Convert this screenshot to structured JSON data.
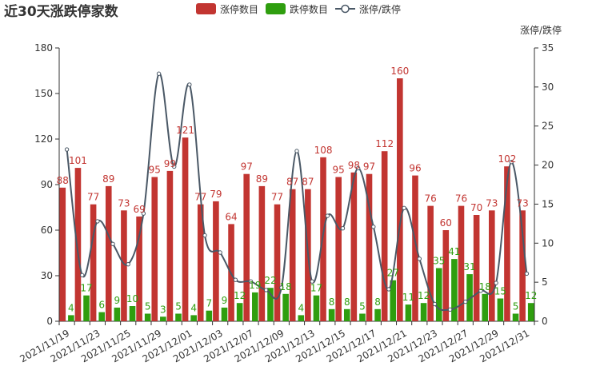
{
  "chart_data": {
    "type": "bar",
    "title": "近30天涨跌停家数",
    "right_axis_name": "涨停/跌停",
    "left_ylim": [
      0,
      180
    ],
    "left_ticks": [
      0,
      30,
      60,
      90,
      120,
      150,
      180
    ],
    "right_ylim": [
      0,
      35
    ],
    "right_ticks": [
      0,
      5,
      10,
      15,
      20,
      25,
      30,
      35
    ],
    "legend_position": "top-center",
    "grid": false,
    "categories": [
      "2021/11/19",
      "2021/11/22",
      "2021/11/23",
      "2021/11/24",
      "2021/11/25",
      "2021/11/26",
      "2021/11/29",
      "2021/11/30",
      "2021/12/01",
      "2021/12/02",
      "2021/12/03",
      "2021/12/06",
      "2021/12/07",
      "2021/12/08",
      "2021/12/09",
      "2021/12/10",
      "2021/12/13",
      "2021/12/14",
      "2021/12/15",
      "2021/12/16",
      "2021/12/17",
      "2021/12/20",
      "2021/12/21",
      "2021/12/22",
      "2021/12/23",
      "2021/12/24",
      "2021/12/27",
      "2021/12/28",
      "2021/12/29",
      "2021/12/30",
      "2021/12/31"
    ],
    "xtick_labels": [
      "2021/11/19",
      "2021/11/23",
      "2021/11/25",
      "2021/11/29",
      "2021/12/01",
      "2021/12/03",
      "2021/12/07",
      "2021/12/09",
      "2021/12/13",
      "2021/12/15",
      "2021/12/17",
      "2021/12/21",
      "2021/12/23",
      "2021/12/27",
      "2021/12/29",
      "2021/12/31"
    ],
    "series": [
      {
        "name": "涨停数目",
        "type": "bar",
        "axis": "left",
        "color": "#c23531",
        "values": [
          88,
          101,
          77,
          89,
          73,
          69,
          95,
          99,
          121,
          77,
          79,
          64,
          97,
          89,
          77,
          87,
          87,
          108,
          95,
          98,
          97,
          112,
          160,
          96,
          76,
          60,
          76,
          70,
          73,
          102,
          73
        ]
      },
      {
        "name": "跌停数目",
        "type": "bar",
        "axis": "left",
        "color": "#2f9e0f",
        "values": [
          4,
          17,
          6,
          9,
          10,
          5,
          3,
          5,
          4,
          7,
          9,
          12,
          19,
          22,
          18,
          4,
          17,
          8,
          8,
          5,
          8,
          27,
          11,
          12,
          35,
          41,
          31,
          18,
          15,
          5,
          12
        ]
      },
      {
        "name": "涨停/跌停",
        "type": "line",
        "axis": "right",
        "color": "#4a5866",
        "values": [
          22,
          5.9,
          12.8,
          9.9,
          7.3,
          13.8,
          31.7,
          19.8,
          30.3,
          11,
          8.8,
          5.3,
          5.1,
          4,
          4.3,
          21.8,
          5.1,
          13.5,
          11.9,
          19.6,
          12.1,
          4.1,
          14.5,
          8,
          2.2,
          1.5,
          2.5,
          3.9,
          4.9,
          20.4,
          6.1
        ]
      }
    ]
  }
}
